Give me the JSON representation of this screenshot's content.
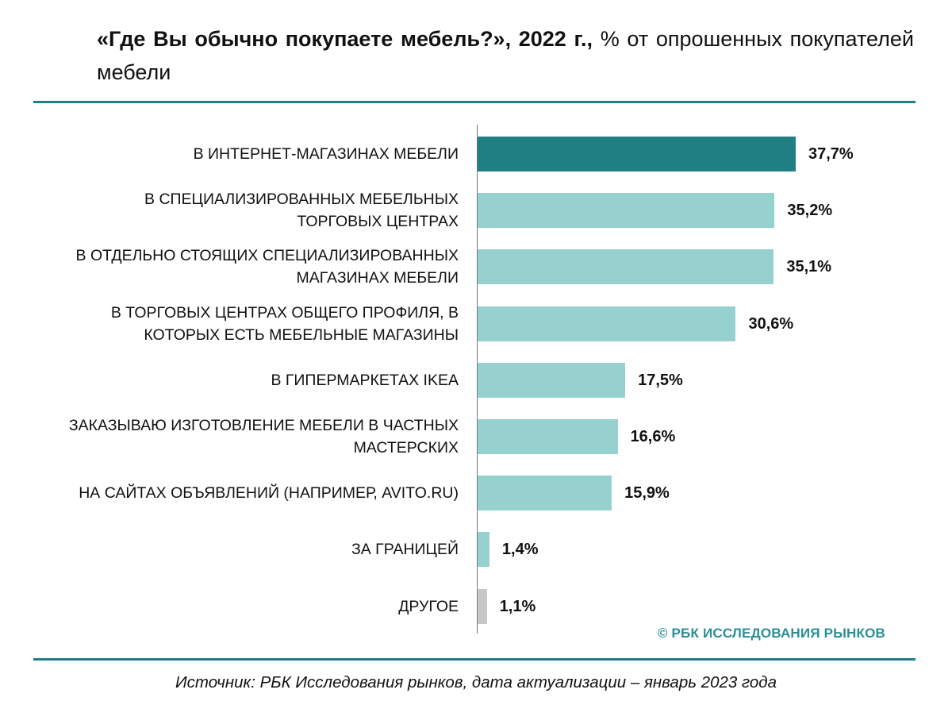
{
  "header": {
    "title_bold": "«Где Вы обычно покупаете мебель?», 2022 г.,",
    "title_rest": " % от опрошенных покупателей мебели"
  },
  "chart_data": {
    "type": "bar",
    "orientation": "horizontal",
    "categories": [
      "В ИНТЕРНЕТ-МАГАЗИНАХ МЕБЕЛИ",
      "В СПЕЦИАЛИЗИРОВАННЫХ МЕБЕЛЬНЫХ ТОРГОВЫХ ЦЕНТРАХ",
      "В ОТДЕЛЬНО СТОЯЩИХ СПЕЦИАЛИЗИРОВАННЫХ МАГАЗИНАХ МЕБЕЛИ",
      "В ТОРГОВЫХ ЦЕНТРАХ ОБЩЕГО ПРОФИЛЯ, В КОТОРЫХ ЕСТЬ МЕБЕЛЬНЫЕ МАГАЗИНЫ",
      "В ГИПЕРМАРКЕТАХ IKEA",
      "ЗАКАЗЫВАЮ ИЗГОТОВЛЕНИЕ МЕБЕЛИ В ЧАСТНЫХ МАСТЕРСКИХ",
      "НА САЙТАХ ОБЪЯВЛЕНИЙ (НАПРИМЕР, AVITO.RU)",
      "ЗА ГРАНИЦЕЙ",
      "ДРУГОЕ"
    ],
    "label_lines": [
      [
        "В ИНТЕРНЕТ-МАГАЗИНАХ МЕБЕЛИ"
      ],
      [
        "В СПЕЦИАЛИЗИРОВАННЫХ МЕБЕЛЬНЫХ",
        "ТОРГОВЫХ ЦЕНТРАХ"
      ],
      [
        "В ОТДЕЛЬНО СТОЯЩИХ СПЕЦИАЛИЗИРОВАННЫХ",
        "МАГАЗИНАХ МЕБЕЛИ"
      ],
      [
        "В ТОРГОВЫХ ЦЕНТРАХ ОБЩЕГО ПРОФИЛЯ, В",
        "КОТОРЫХ ЕСТЬ МЕБЕЛЬНЫЕ МАГАЗИНЫ"
      ],
      [
        "В ГИПЕРМАРКЕТАХ IKEA"
      ],
      [
        "ЗАКАЗЫВАЮ ИЗГОТОВЛЕНИЕ МЕБЕЛИ В ЧАСТНЫХ",
        "МАСТЕРСКИХ"
      ],
      [
        "НА САЙТАХ ОБЪЯВЛЕНИЙ (НАПРИМЕР, AVITO.RU)"
      ],
      [
        "ЗА ГРАНИЦЕЙ"
      ],
      [
        "ДРУГОЕ"
      ]
    ],
    "values": [
      37.7,
      35.2,
      35.1,
      30.6,
      17.5,
      16.6,
      15.9,
      1.4,
      1.1
    ],
    "value_labels": [
      "37,7%",
      "35,2%",
      "35,1%",
      "30,6%",
      "17,5%",
      "16,6%",
      "15,9%",
      "1,4%",
      "1,1%"
    ],
    "bar_colors": [
      "#1f7f83",
      "#96d1cf",
      "#96d1cf",
      "#96d1cf",
      "#96d1cf",
      "#96d1cf",
      "#96d1cf",
      "#96d1cf",
      "#c8c8c8"
    ],
    "xlim": [
      0,
      37.7
    ],
    "grid": false,
    "legend": "none",
    "unit": "%"
  },
  "watermark": "© РБК ИССЛЕДОВАНИЯ РЫНКОВ",
  "source": "Источник: РБК Исследования рынков, дата актуализации – январь 2023 года",
  "colors": {
    "accent": "#1e7e84",
    "highlight_bar": "#1f7f83",
    "bar": "#96d1cf",
    "other_bar": "#c8c8c8"
  }
}
